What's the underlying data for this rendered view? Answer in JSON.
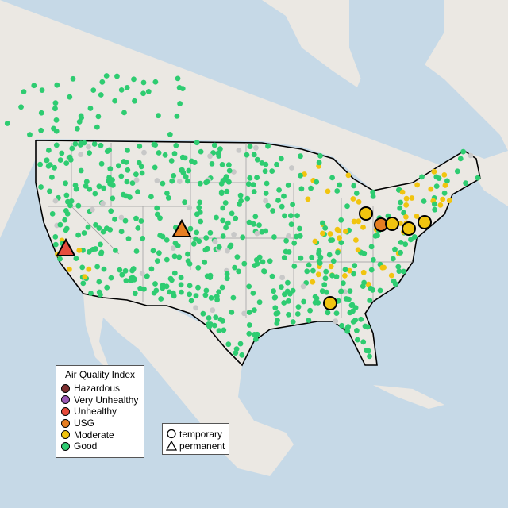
{
  "legend": {
    "title": "Air Quality Index",
    "categories": [
      {
        "label": "Hazardous",
        "color": "#7e2f2f"
      },
      {
        "label": "Very Unhealthy",
        "color": "#9b59b6"
      },
      {
        "label": "Unhealthy",
        "color": "#e74c3c"
      },
      {
        "label": "USG",
        "color": "#e67e22"
      },
      {
        "label": "Moderate",
        "color": "#f1c40f"
      },
      {
        "label": "Good",
        "color": "#2ecc71"
      }
    ],
    "monitor_types": [
      {
        "label": "temporary",
        "shape": "circle"
      },
      {
        "label": "permanent",
        "shape": "triangle"
      }
    ]
  },
  "colors": {
    "water": "#c6d9e7",
    "land": "#ebe8e3",
    "border": "#000000",
    "state_lines": "#9a9a9a",
    "no_data": "#c8c8c8"
  },
  "highlighted_monitors": [
    {
      "category": "Unhealthy",
      "type": "permanent",
      "region": "Central California"
    },
    {
      "category": "USG",
      "type": "permanent",
      "region": "Colorado"
    },
    {
      "category": "Moderate",
      "type": "temporary",
      "region": "Ohio"
    },
    {
      "category": "USG",
      "type": "temporary",
      "region": "Ohio/Pennsylvania"
    },
    {
      "category": "Moderate",
      "type": "temporary",
      "region": "Pennsylvania"
    },
    {
      "category": "Moderate",
      "type": "temporary",
      "region": "Pennsylvania"
    },
    {
      "category": "Moderate",
      "type": "temporary",
      "region": "New Jersey"
    },
    {
      "category": "Moderate",
      "type": "temporary",
      "region": "Alabama"
    }
  ]
}
